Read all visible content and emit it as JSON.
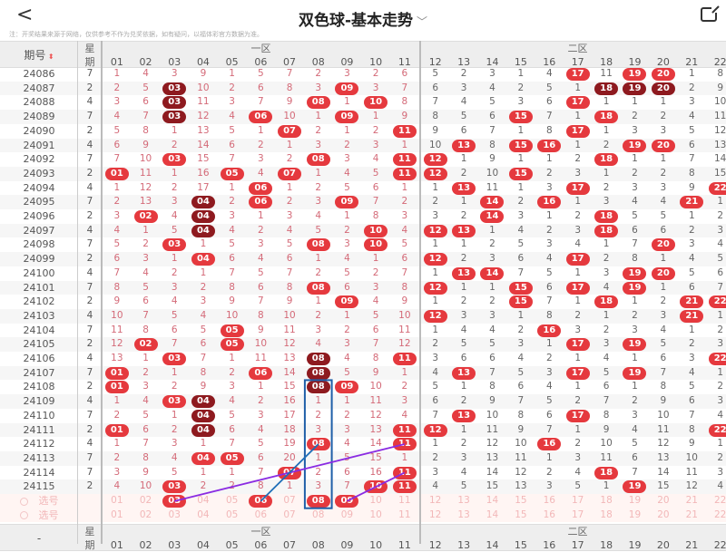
{
  "header": {
    "back_icon": "chevron-left-icon",
    "title": "双色球-基本走势",
    "title_chevron": "chevron-down-icon",
    "share_icon": "share-icon"
  },
  "note": "注：开奖结果来源于网络，仅供参考不作为兑奖依据，如有疑问，以福体彩官方数据为准。",
  "table_header": {
    "period": "期号",
    "sort_icon": "sort-arrows-icon",
    "weekday_top": "星",
    "weekday_bottom": "期",
    "zone1": "一区",
    "zone2": "二区",
    "bottom_period": "-",
    "numbers": [
      "01",
      "02",
      "03",
      "04",
      "05",
      "06",
      "07",
      "08",
      "09",
      "10",
      "11",
      "12",
      "13",
      "14",
      "15",
      "16",
      "17",
      "18",
      "19",
      "20",
      "21",
      "22"
    ]
  },
  "rows": [
    {
      "period": "24086",
      "weekday": "7",
      "cells": [
        "1",
        "4",
        "3",
        "9",
        "1",
        "5",
        "7",
        "2",
        "3",
        "2",
        "6",
        "5",
        "2",
        "3",
        "1",
        "4",
        "17",
        "11",
        "19",
        "20",
        "1",
        "8"
      ],
      "balls": [
        "17",
        "19",
        "20"
      ]
    },
    {
      "period": "24087",
      "weekday": "2",
      "cells": [
        "2",
        "5",
        "03",
        "10",
        "2",
        "6",
        "8",
        "3",
        "09",
        "3",
        "7",
        "6",
        "3",
        "4",
        "2",
        "5",
        "1",
        "18",
        "19",
        "20",
        "2",
        "9"
      ],
      "balls": [
        "03",
        "09",
        "18",
        "19",
        "20"
      ]
    },
    {
      "period": "24088",
      "weekday": "4",
      "cells": [
        "3",
        "6",
        "03",
        "11",
        "3",
        "7",
        "9",
        "08",
        "1",
        "10",
        "8",
        "7",
        "4",
        "5",
        "3",
        "6",
        "17",
        "1",
        "1",
        "1",
        "3",
        "10"
      ],
      "balls": [
        "03",
        "08",
        "10",
        "17"
      ]
    },
    {
      "period": "24089",
      "weekday": "7",
      "cells": [
        "4",
        "7",
        "03",
        "12",
        "4",
        "06",
        "10",
        "1",
        "09",
        "1",
        "9",
        "8",
        "5",
        "6",
        "15",
        "7",
        "1",
        "18",
        "2",
        "2",
        "4",
        "11"
      ],
      "balls": [
        "03",
        "06",
        "09",
        "15",
        "18"
      ]
    },
    {
      "period": "24090",
      "weekday": "2",
      "cells": [
        "5",
        "8",
        "1",
        "13",
        "5",
        "1",
        "07",
        "2",
        "1",
        "2",
        "11",
        "9",
        "6",
        "7",
        "1",
        "8",
        "17",
        "1",
        "3",
        "3",
        "5",
        "12"
      ],
      "balls": [
        "07",
        "11",
        "17"
      ]
    },
    {
      "period": "24091",
      "weekday": "4",
      "cells": [
        "6",
        "9",
        "2",
        "14",
        "6",
        "2",
        "1",
        "3",
        "2",
        "3",
        "1",
        "10",
        "13",
        "8",
        "15",
        "16",
        "1",
        "2",
        "19",
        "20",
        "6",
        "13"
      ],
      "balls": [
        "13",
        "15",
        "16",
        "19",
        "20"
      ]
    },
    {
      "period": "24092",
      "weekday": "7",
      "cells": [
        "7",
        "10",
        "03",
        "15",
        "7",
        "3",
        "2",
        "08",
        "3",
        "4",
        "11",
        "12",
        "1",
        "9",
        "1",
        "1",
        "2",
        "18",
        "1",
        "1",
        "7",
        "14"
      ],
      "balls": [
        "03",
        "08",
        "11",
        "12",
        "18"
      ]
    },
    {
      "period": "24093",
      "weekday": "2",
      "cells": [
        "01",
        "11",
        "1",
        "16",
        "05",
        "4",
        "07",
        "1",
        "4",
        "5",
        "11",
        "12",
        "2",
        "10",
        "15",
        "2",
        "3",
        "1",
        "2",
        "2",
        "8",
        "15"
      ],
      "balls": [
        "01",
        "05",
        "07",
        "11",
        "12",
        "15"
      ]
    },
    {
      "period": "24094",
      "weekday": "4",
      "cells": [
        "1",
        "12",
        "2",
        "17",
        "1",
        "06",
        "1",
        "2",
        "5",
        "6",
        "1",
        "1",
        "13",
        "11",
        "1",
        "3",
        "17",
        "2",
        "3",
        "3",
        "9",
        "22"
      ],
      "balls": [
        "06",
        "13",
        "17",
        "22"
      ]
    },
    {
      "period": "24095",
      "weekday": "7",
      "cells": [
        "2",
        "13",
        "3",
        "04",
        "2",
        "06",
        "2",
        "3",
        "09",
        "7",
        "2",
        "2",
        "1",
        "14",
        "2",
        "16",
        "1",
        "3",
        "4",
        "4",
        "21",
        "1"
      ],
      "balls": [
        "04",
        "06",
        "09",
        "14",
        "16",
        "21"
      ]
    },
    {
      "period": "24096",
      "weekday": "2",
      "cells": [
        "3",
        "02",
        "4",
        "04",
        "3",
        "1",
        "3",
        "4",
        "1",
        "8",
        "3",
        "3",
        "2",
        "14",
        "3",
        "1",
        "2",
        "18",
        "5",
        "5",
        "1",
        "2"
      ],
      "balls": [
        "02",
        "04",
        "14",
        "18"
      ]
    },
    {
      "period": "24097",
      "weekday": "4",
      "cells": [
        "4",
        "1",
        "5",
        "04",
        "4",
        "2",
        "4",
        "5",
        "2",
        "10",
        "4",
        "12",
        "13",
        "1",
        "4",
        "2",
        "3",
        "18",
        "6",
        "6",
        "2",
        "3"
      ],
      "balls": [
        "04",
        "10",
        "12",
        "13",
        "18"
      ]
    },
    {
      "period": "24098",
      "weekday": "7",
      "cells": [
        "5",
        "2",
        "03",
        "1",
        "5",
        "3",
        "5",
        "08",
        "3",
        "10",
        "5",
        "1",
        "1",
        "2",
        "5",
        "3",
        "4",
        "1",
        "7",
        "20",
        "3",
        "4"
      ],
      "balls": [
        "03",
        "08",
        "10",
        "20"
      ]
    },
    {
      "period": "24099",
      "weekday": "2",
      "cells": [
        "6",
        "3",
        "1",
        "04",
        "6",
        "4",
        "6",
        "1",
        "4",
        "1",
        "6",
        "12",
        "2",
        "3",
        "6",
        "4",
        "17",
        "2",
        "8",
        "1",
        "4",
        "5"
      ],
      "balls": [
        "04",
        "12",
        "17"
      ]
    },
    {
      "period": "24100",
      "weekday": "4",
      "cells": [
        "7",
        "4",
        "2",
        "1",
        "7",
        "5",
        "7",
        "2",
        "5",
        "2",
        "7",
        "1",
        "13",
        "14",
        "7",
        "5",
        "1",
        "3",
        "19",
        "20",
        "5",
        "6"
      ],
      "balls": [
        "13",
        "14",
        "19",
        "20"
      ]
    },
    {
      "period": "24101",
      "weekday": "7",
      "cells": [
        "8",
        "5",
        "3",
        "2",
        "8",
        "6",
        "8",
        "08",
        "6",
        "3",
        "8",
        "12",
        "1",
        "1",
        "15",
        "6",
        "17",
        "4",
        "19",
        "1",
        "6",
        "7"
      ],
      "balls": [
        "08",
        "12",
        "15",
        "17",
        "19"
      ]
    },
    {
      "period": "24102",
      "weekday": "2",
      "cells": [
        "9",
        "6",
        "4",
        "3",
        "9",
        "7",
        "9",
        "1",
        "09",
        "4",
        "9",
        "1",
        "2",
        "2",
        "15",
        "7",
        "1",
        "18",
        "1",
        "2",
        "21",
        "22"
      ],
      "balls": [
        "09",
        "15",
        "18",
        "21",
        "22"
      ]
    },
    {
      "period": "24103",
      "weekday": "4",
      "cells": [
        "10",
        "7",
        "5",
        "4",
        "10",
        "8",
        "10",
        "2",
        "1",
        "5",
        "10",
        "12",
        "3",
        "3",
        "1",
        "8",
        "2",
        "1",
        "2",
        "3",
        "21",
        "1"
      ],
      "balls": [
        "12",
        "21"
      ]
    },
    {
      "period": "24104",
      "weekday": "7",
      "cells": [
        "11",
        "8",
        "6",
        "5",
        "05",
        "9",
        "11",
        "3",
        "2",
        "6",
        "11",
        "1",
        "4",
        "4",
        "2",
        "16",
        "3",
        "2",
        "3",
        "4",
        "1",
        "2"
      ],
      "balls": [
        "05",
        "16"
      ]
    },
    {
      "period": "24105",
      "weekday": "2",
      "cells": [
        "12",
        "02",
        "7",
        "6",
        "05",
        "10",
        "12",
        "4",
        "3",
        "7",
        "12",
        "2",
        "5",
        "5",
        "3",
        "1",
        "17",
        "3",
        "19",
        "5",
        "2",
        "3"
      ],
      "balls": [
        "02",
        "05",
        "17",
        "19"
      ]
    },
    {
      "period": "24106",
      "weekday": "4",
      "cells": [
        "13",
        "1",
        "03",
        "7",
        "1",
        "11",
        "13",
        "08",
        "4",
        "8",
        "11",
        "3",
        "6",
        "6",
        "4",
        "2",
        "1",
        "4",
        "1",
        "6",
        "3",
        "22"
      ],
      "balls": [
        "03",
        "08",
        "11",
        "22"
      ]
    },
    {
      "period": "24107",
      "weekday": "7",
      "cells": [
        "01",
        "2",
        "1",
        "8",
        "2",
        "06",
        "14",
        "08",
        "5",
        "9",
        "1",
        "4",
        "13",
        "7",
        "5",
        "3",
        "17",
        "5",
        "19",
        "7",
        "4",
        "1"
      ],
      "balls": [
        "01",
        "06",
        "08",
        "13",
        "17",
        "19"
      ]
    },
    {
      "period": "24108",
      "weekday": "2",
      "cells": [
        "01",
        "3",
        "2",
        "9",
        "3",
        "1",
        "15",
        "08",
        "09",
        "10",
        "2",
        "5",
        "1",
        "8",
        "6",
        "4",
        "1",
        "6",
        "1",
        "8",
        "5",
        "2"
      ],
      "balls": [
        "01",
        "08",
        "09"
      ]
    },
    {
      "period": "24109",
      "weekday": "4",
      "cells": [
        "1",
        "4",
        "03",
        "04",
        "4",
        "2",
        "16",
        "1",
        "1",
        "11",
        "3",
        "6",
        "2",
        "9",
        "7",
        "5",
        "2",
        "7",
        "2",
        "9",
        "6",
        "3"
      ],
      "balls": [
        "03",
        "04"
      ]
    },
    {
      "period": "24110",
      "weekday": "7",
      "cells": [
        "2",
        "5",
        "1",
        "04",
        "5",
        "3",
        "17",
        "2",
        "2",
        "12",
        "4",
        "7",
        "13",
        "10",
        "8",
        "6",
        "17",
        "8",
        "3",
        "10",
        "7",
        "4"
      ],
      "balls": [
        "04",
        "13",
        "17"
      ]
    },
    {
      "period": "24111",
      "weekday": "2",
      "cells": [
        "01",
        "6",
        "2",
        "04",
        "6",
        "4",
        "18",
        "3",
        "3",
        "13",
        "11",
        "12",
        "1",
        "11",
        "9",
        "7",
        "1",
        "9",
        "4",
        "11",
        "8",
        "22"
      ],
      "balls": [
        "01",
        "04",
        "11",
        "12",
        "22"
      ]
    },
    {
      "period": "24112",
      "weekday": "4",
      "cells": [
        "1",
        "7",
        "3",
        "1",
        "7",
        "5",
        "19",
        "08",
        "4",
        "14",
        "11",
        "1",
        "2",
        "12",
        "10",
        "16",
        "2",
        "10",
        "5",
        "12",
        "9",
        "1"
      ],
      "balls": [
        "08",
        "11",
        "16"
      ]
    },
    {
      "period": "24113",
      "weekday": "7",
      "cells": [
        "2",
        "8",
        "4",
        "04",
        "05",
        "6",
        "20",
        "1",
        "5",
        "15",
        "1",
        "2",
        "3",
        "13",
        "11",
        "1",
        "3",
        "11",
        "6",
        "13",
        "10",
        "2"
      ],
      "balls": [
        "04",
        "05"
      ]
    },
    {
      "period": "24114",
      "weekday": "7",
      "cells": [
        "3",
        "9",
        "5",
        "1",
        "1",
        "7",
        "07",
        "2",
        "6",
        "16",
        "11",
        "3",
        "4",
        "14",
        "12",
        "2",
        "4",
        "18",
        "7",
        "14",
        "11",
        "3"
      ],
      "balls": [
        "07",
        "11",
        "18"
      ]
    },
    {
      "period": "24115",
      "weekday": "2",
      "cells": [
        "4",
        "10",
        "03",
        "2",
        "2",
        "8",
        "1",
        "3",
        "7",
        "10",
        "11",
        "4",
        "5",
        "15",
        "13",
        "3",
        "5",
        "1",
        "19",
        "15",
        "12",
        "4"
      ],
      "balls": [
        "03",
        "10",
        "11",
        "19"
      ]
    }
  ],
  "pick_rows": [
    {
      "label": "选号",
      "selected": [
        "03",
        "06",
        "08",
        "09"
      ]
    },
    {
      "label": "选号",
      "selected": []
    }
  ],
  "colors": {
    "ball": "#e5393e",
    "ball_repeat": "#8e1a1f",
    "miss_zone1": "#d46a78",
    "miss_zone2": "#666666",
    "box": "#1f5fa8",
    "line_purple": "#8a2be2",
    "line_blue": "#1f6fb8"
  }
}
